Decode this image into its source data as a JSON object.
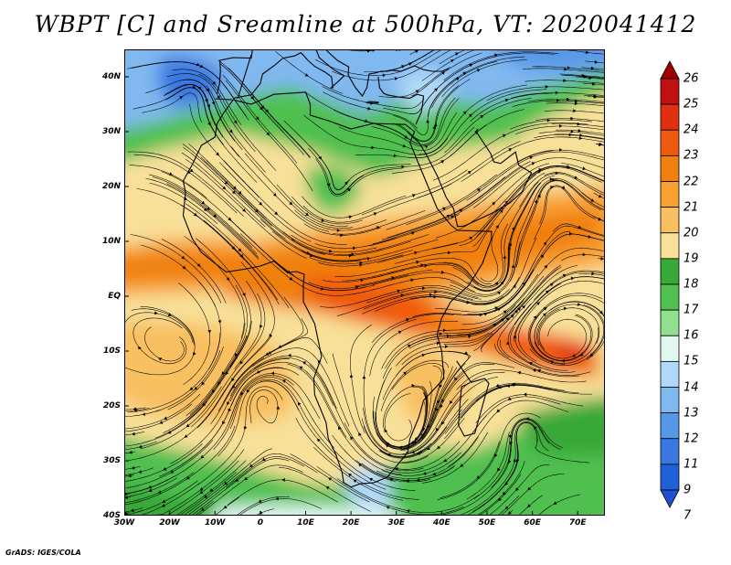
{
  "title": "WBPT [C] and Sreamline at 500hPa, VT: 2020041412",
  "credit": "GrADS: IGES/COLA",
  "map": {
    "variable": "Wet-bulb potential temperature with streamlines",
    "level": "500hPa",
    "valid_time": "2020041412",
    "lat_labels": [
      "40N",
      "30N",
      "20N",
      "10N",
      "EQ",
      "10S",
      "20S",
      "30S",
      "40S"
    ],
    "lon_labels": [
      "30W",
      "20W",
      "10W",
      "0",
      "10E",
      "20E",
      "30E",
      "40E",
      "50E",
      "60E",
      "70E"
    ],
    "lat_range": [
      -40,
      45
    ],
    "lon_range": [
      -30,
      76
    ]
  },
  "colorbar": {
    "levels": [
      "26",
      "25",
      "24",
      "23",
      "22",
      "21",
      "20",
      "19",
      "18",
      "17",
      "16",
      "15",
      "14",
      "13",
      "12",
      "11",
      "9",
      "7"
    ],
    "colors": [
      "#a00000",
      "#c01010",
      "#e03010",
      "#f05a10",
      "#f08010",
      "#f8a030",
      "#f8c060",
      "#f8e098",
      "#38a838",
      "#50c050",
      "#90e090",
      "#e0f8f0",
      "#b0d8f8",
      "#80b8f0",
      "#5898e8",
      "#3878e0",
      "#2060d8",
      "#2050d0"
    ]
  }
}
